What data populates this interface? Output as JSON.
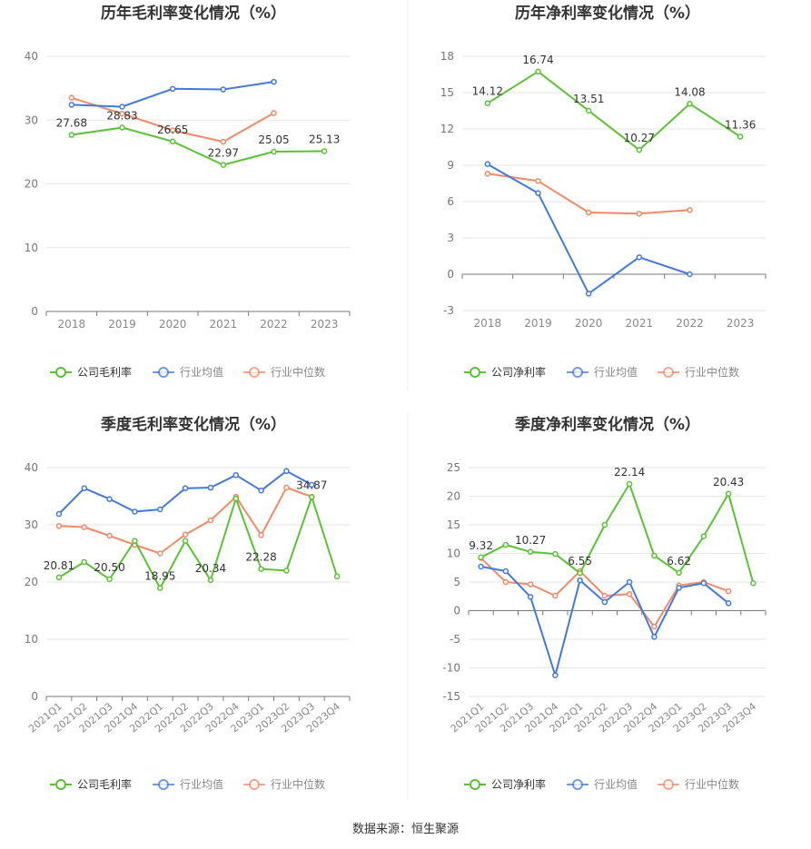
{
  "colors": {
    "company": "#5bc236",
    "avg": "#4379df",
    "median": "#f28a66"
  },
  "footer": {
    "source": "数据来源：恒生聚源"
  },
  "chart_data": [
    {
      "id": "c1",
      "type": "line",
      "title": "历年毛利率变化情况（%）",
      "categories": [
        "2018",
        "2019",
        "2020",
        "2021",
        "2022",
        "2023"
      ],
      "ylim": [
        0,
        40
      ],
      "yticks": [
        0,
        10,
        20,
        30,
        40
      ],
      "grid": true,
      "legend_position": "bottom",
      "series": [
        {
          "name": "公司毛利率",
          "color_key": "company",
          "values": [
            27.68,
            28.83,
            26.65,
            22.97,
            25.05,
            25.13
          ],
          "labels": [
            "27.68",
            "28.83",
            "26.65",
            "22.97",
            "25.05",
            "25.13"
          ]
        },
        {
          "name": "行业均值",
          "color_key": "avg",
          "values": [
            32.4,
            32.1,
            34.9,
            34.8,
            36.0,
            null
          ]
        },
        {
          "name": "行业中位数",
          "color_key": "median",
          "values": [
            33.5,
            31.0,
            28.4,
            26.6,
            31.1,
            null
          ]
        }
      ]
    },
    {
      "id": "c2",
      "type": "line",
      "title": "历年净利率变化情况（%）",
      "categories": [
        "2018",
        "2019",
        "2020",
        "2021",
        "2022",
        "2023"
      ],
      "ylim": [
        -3,
        18
      ],
      "yticks": [
        -3,
        0,
        3,
        6,
        9,
        12,
        15,
        18
      ],
      "grid": true,
      "legend_position": "bottom",
      "series": [
        {
          "name": "公司净利率",
          "color_key": "company",
          "values": [
            14.12,
            16.74,
            13.51,
            10.27,
            14.08,
            11.36
          ],
          "labels": [
            "14.12",
            "16.74",
            "13.51",
            "10.27",
            "14.08",
            "11.36"
          ]
        },
        {
          "name": "行业均值",
          "color_key": "avg",
          "values": [
            9.1,
            6.7,
            -1.6,
            1.4,
            0.0,
            null
          ]
        },
        {
          "name": "行业中位数",
          "color_key": "median",
          "values": [
            8.3,
            7.7,
            5.1,
            5.0,
            5.3,
            null
          ]
        }
      ]
    },
    {
      "id": "c3",
      "type": "line",
      "title": "季度毛利率变化情况（%）",
      "categories": [
        "2021Q1",
        "2021Q2",
        "2021Q3",
        "2021Q4",
        "2022Q1",
        "2022Q2",
        "2022Q3",
        "2022Q4",
        "2023Q1",
        "2023Q2",
        "2023Q3",
        "2023Q4"
      ],
      "ylim": [
        0,
        40
      ],
      "yticks": [
        0,
        10,
        20,
        30,
        40
      ],
      "grid": true,
      "legend_position": "bottom",
      "series": [
        {
          "name": "公司毛利率",
          "color_key": "company",
          "values": [
            20.81,
            23.5,
            20.5,
            27.2,
            18.95,
            27.2,
            20.34,
            34.6,
            22.28,
            22.0,
            34.87,
            21.0
          ],
          "labels": [
            "20.81",
            "",
            "20.50",
            "",
            "18.95",
            "",
            "20.34",
            "",
            "22.28",
            "",
            "34.87",
            ""
          ]
        },
        {
          "name": "行业均值",
          "color_key": "avg",
          "values": [
            31.9,
            36.4,
            34.5,
            32.3,
            32.7,
            36.4,
            36.5,
            38.7,
            36.0,
            39.4,
            37.0,
            null
          ]
        },
        {
          "name": "行业中位数",
          "color_key": "median",
          "values": [
            29.8,
            29.6,
            28.1,
            26.5,
            25.0,
            28.3,
            30.8,
            34.9,
            28.2,
            36.5,
            34.9,
            null
          ]
        }
      ]
    },
    {
      "id": "c4",
      "type": "line",
      "title": "季度净利率变化情况（%）",
      "categories": [
        "2021Q1",
        "2021Q2",
        "2021Q3",
        "2021Q4",
        "2022Q1",
        "2022Q2",
        "2022Q3",
        "2022Q4",
        "2023Q1",
        "2023Q2",
        "2023Q3",
        "2023Q4"
      ],
      "ylim": [
        -15,
        25
      ],
      "yticks": [
        -15,
        -10,
        -5,
        0,
        5,
        10,
        15,
        20,
        25
      ],
      "grid": true,
      "legend_position": "bottom",
      "series": [
        {
          "name": "公司净利率",
          "color_key": "company",
          "values": [
            9.32,
            11.5,
            10.27,
            9.9,
            6.55,
            15.0,
            22.14,
            9.6,
            6.62,
            13.0,
            20.43,
            4.8
          ],
          "labels": [
            "9.32",
            "",
            "10.27",
            "",
            "6.55",
            "",
            "22.14",
            "",
            "6.62",
            "",
            "20.43",
            ""
          ]
        },
        {
          "name": "行业均值",
          "color_key": "avg",
          "values": [
            7.7,
            6.9,
            2.4,
            -11.3,
            5.3,
            1.5,
            5.0,
            -4.6,
            4.0,
            4.8,
            1.3,
            null
          ]
        },
        {
          "name": "行业中位数",
          "color_key": "median",
          "values": [
            9.2,
            5.0,
            4.6,
            2.6,
            6.9,
            2.6,
            2.9,
            -2.8,
            4.4,
            5.0,
            3.4,
            null
          ]
        }
      ]
    }
  ]
}
